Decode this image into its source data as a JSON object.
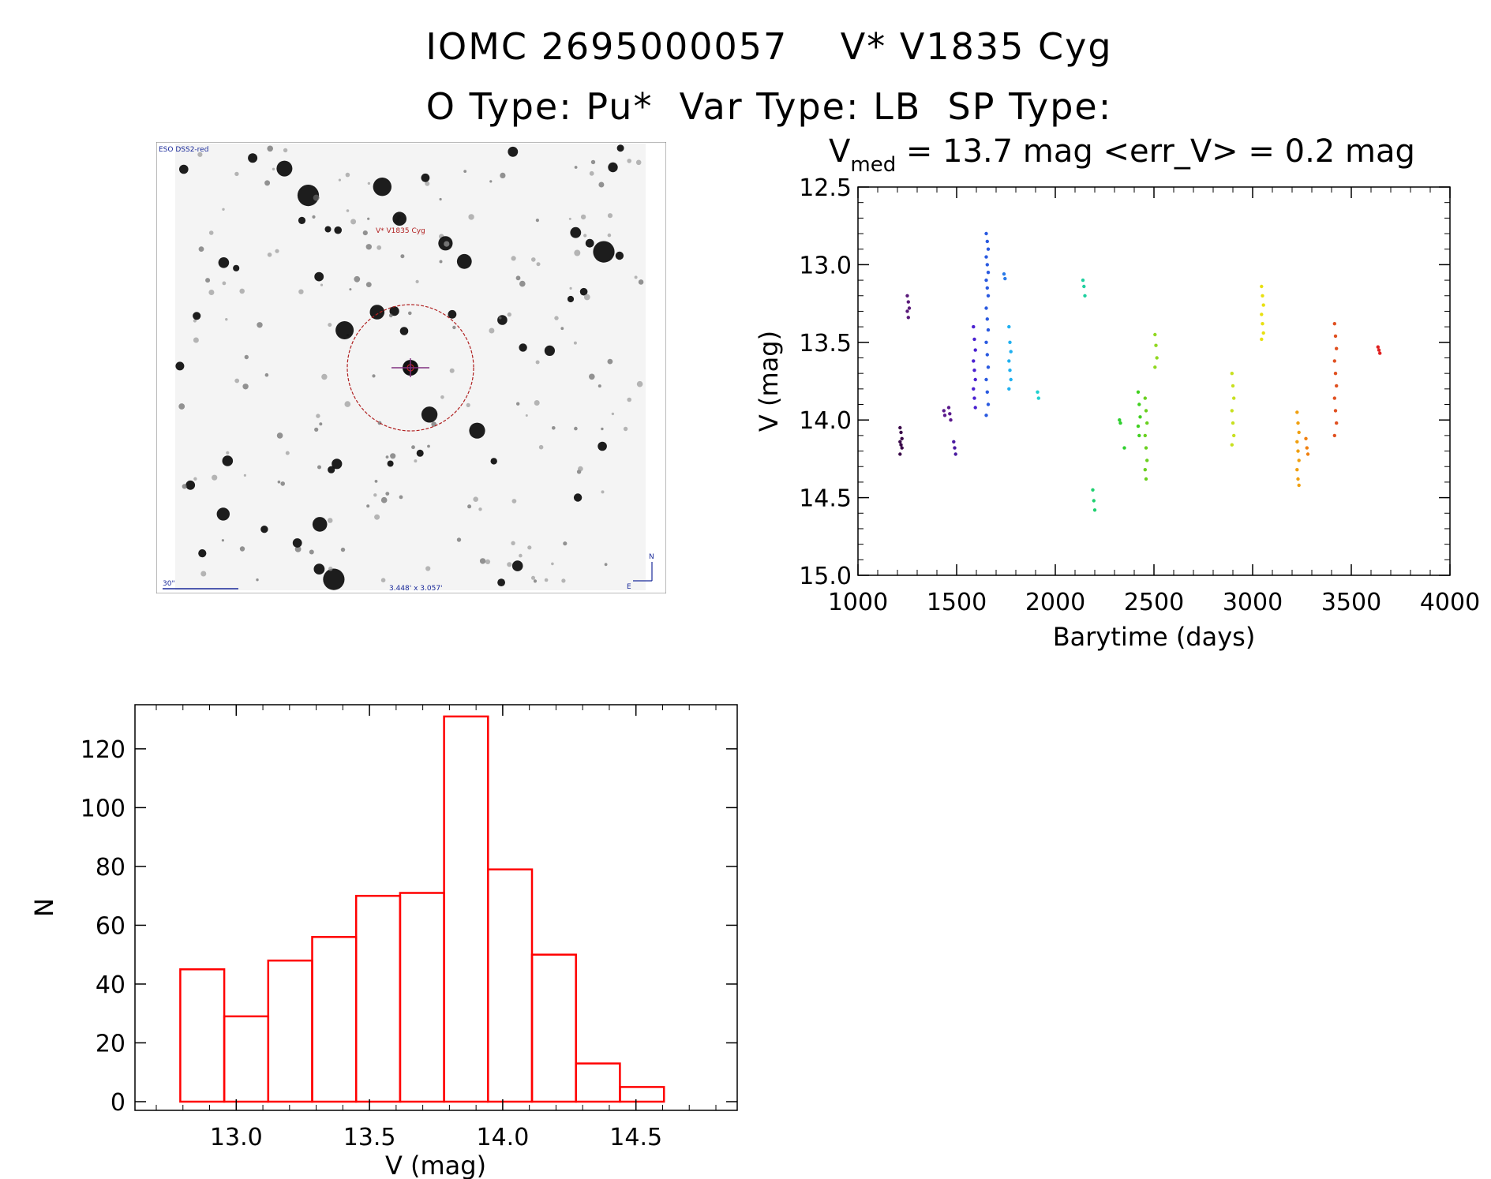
{
  "header": {
    "title_line1": "IOMC 2695000057    V* V1835 Cyg",
    "title_line2": "O Type: Pu*  Var Type: LB  SP Type:"
  },
  "image": {
    "survey_label": "ESO DSS2-red",
    "target_label": "V* V1835 Cyg",
    "scale_label": "30\"",
    "fov_label": "3.448' x 3.057'",
    "north_label": "N",
    "east_label": "E"
  },
  "lightcurve": {
    "header_prefix": "V",
    "header_sub": "med",
    "header_rest": " = 13.7 mag <err_V> = 0.2 mag"
  },
  "chart_data": [
    {
      "type": "scatter",
      "xlabel": "Barytime (days)",
      "ylabel": "V (mag)",
      "xlim": [
        1000,
        4000
      ],
      "ylim": [
        15.0,
        12.5
      ],
      "y_inverted": true,
      "xticks": [
        "1000",
        "1500",
        "2000",
        "2500",
        "3000",
        "3500",
        "4000"
      ],
      "yticks": [
        "12.5",
        "13.0",
        "13.5",
        "14.0",
        "14.5",
        "15.0"
      ],
      "groups": [
        {
          "x": 1218,
          "y": [
            14.05,
            14.08,
            14.12,
            14.14,
            14.16,
            14.18,
            14.22
          ],
          "color": "#3a0a4a"
        },
        {
          "x": 1255,
          "y": [
            13.2,
            13.24,
            13.28,
            13.3,
            13.34
          ],
          "color": "#5a1a7a"
        },
        {
          "x": 1440,
          "y": [
            13.94,
            13.97
          ],
          "color": "#5b1a8c"
        },
        {
          "x": 1465,
          "y": [
            13.92,
            13.96,
            14.0
          ],
          "color": "#5b1a8c"
        },
        {
          "x": 1490,
          "y": [
            14.14,
            14.18,
            14.22
          ],
          "color": "#4a1aa0"
        },
        {
          "x": 1590,
          "y": [
            13.4,
            13.48,
            13.55,
            13.62,
            13.68,
            13.74,
            13.8,
            13.86,
            13.92
          ],
          "color": "#4a20d0"
        },
        {
          "x": 1655,
          "y": [
            12.8,
            12.85,
            12.9,
            12.95,
            13.0,
            13.05,
            13.1,
            13.15,
            13.2,
            13.28,
            13.35,
            13.42,
            13.5,
            13.58,
            13.66,
            13.74,
            13.82,
            13.9,
            13.97
          ],
          "color": "#2a5ae0"
        },
        {
          "x": 1745,
          "y": [
            13.06,
            13.09
          ],
          "color": "#2a7ae8"
        },
        {
          "x": 1770,
          "y": [
            13.4,
            13.5,
            13.56,
            13.62,
            13.68,
            13.74,
            13.8
          ],
          "color": "#20b0f0"
        },
        {
          "x": 1915,
          "y": [
            13.82,
            13.86
          ],
          "color": "#20d0d0"
        },
        {
          "x": 2145,
          "y": [
            13.1,
            13.14,
            13.2
          ],
          "color": "#20d0a0"
        },
        {
          "x": 2195,
          "y": [
            14.45,
            14.52,
            14.58
          ],
          "color": "#20d070"
        },
        {
          "x": 2330,
          "y": [
            14.0,
            14.02
          ],
          "color": "#30d030"
        },
        {
          "x": 2355,
          "y": [
            14.18
          ],
          "color": "#30d030"
        },
        {
          "x": 2425,
          "y": [
            13.82,
            13.9,
            13.98,
            14.04,
            14.1
          ],
          "color": "#40d020"
        },
        {
          "x": 2460,
          "y": [
            13.86,
            13.94,
            14.02,
            14.1,
            14.18,
            14.26,
            14.32,
            14.38
          ],
          "color": "#6ad020"
        },
        {
          "x": 2510,
          "y": [
            13.45,
            13.52,
            13.6,
            13.66
          ],
          "color": "#90d820"
        },
        {
          "x": 2900,
          "y": [
            13.7,
            13.78,
            13.86,
            13.94,
            14.02,
            14.1,
            14.16
          ],
          "color": "#c8e020"
        },
        {
          "x": 3050,
          "y": [
            13.14,
            13.2,
            13.26,
            13.32,
            13.38,
            13.44,
            13.48
          ],
          "color": "#e8e010"
        },
        {
          "x": 3230,
          "y": [
            13.95,
            14.02,
            14.08,
            14.14,
            14.2,
            14.26,
            14.32,
            14.38,
            14.42
          ],
          "color": "#f0a010"
        },
        {
          "x": 3275,
          "y": [
            14.12,
            14.18,
            14.22
          ],
          "color": "#f08010"
        },
        {
          "x": 3420,
          "y": [
            13.38,
            13.46,
            13.54,
            13.62,
            13.7,
            13.78,
            13.86,
            13.94,
            14.02,
            14.1
          ],
          "color": "#e05020"
        },
        {
          "x": 3640,
          "y": [
            13.53,
            13.55,
            13.57
          ],
          "color": "#e02020"
        }
      ]
    },
    {
      "type": "bar",
      "subtype": "histogram",
      "xlabel": "V (mag)",
      "ylabel": "N",
      "xlim": [
        12.62,
        14.88
      ],
      "ylim": [
        0,
        135
      ],
      "xticks": [
        "13.0",
        "13.5",
        "14.0",
        "14.5"
      ],
      "yticks": [
        "0",
        "20",
        "40",
        "60",
        "80",
        "100",
        "120"
      ],
      "bin_edges": [
        12.79,
        12.955,
        13.12,
        13.285,
        13.45,
        13.615,
        13.78,
        13.945,
        14.11,
        14.275,
        14.44,
        14.605
      ],
      "values": [
        45,
        29,
        48,
        56,
        70,
        71,
        131,
        79,
        50,
        13,
        5
      ],
      "color": "#ff0000"
    }
  ]
}
